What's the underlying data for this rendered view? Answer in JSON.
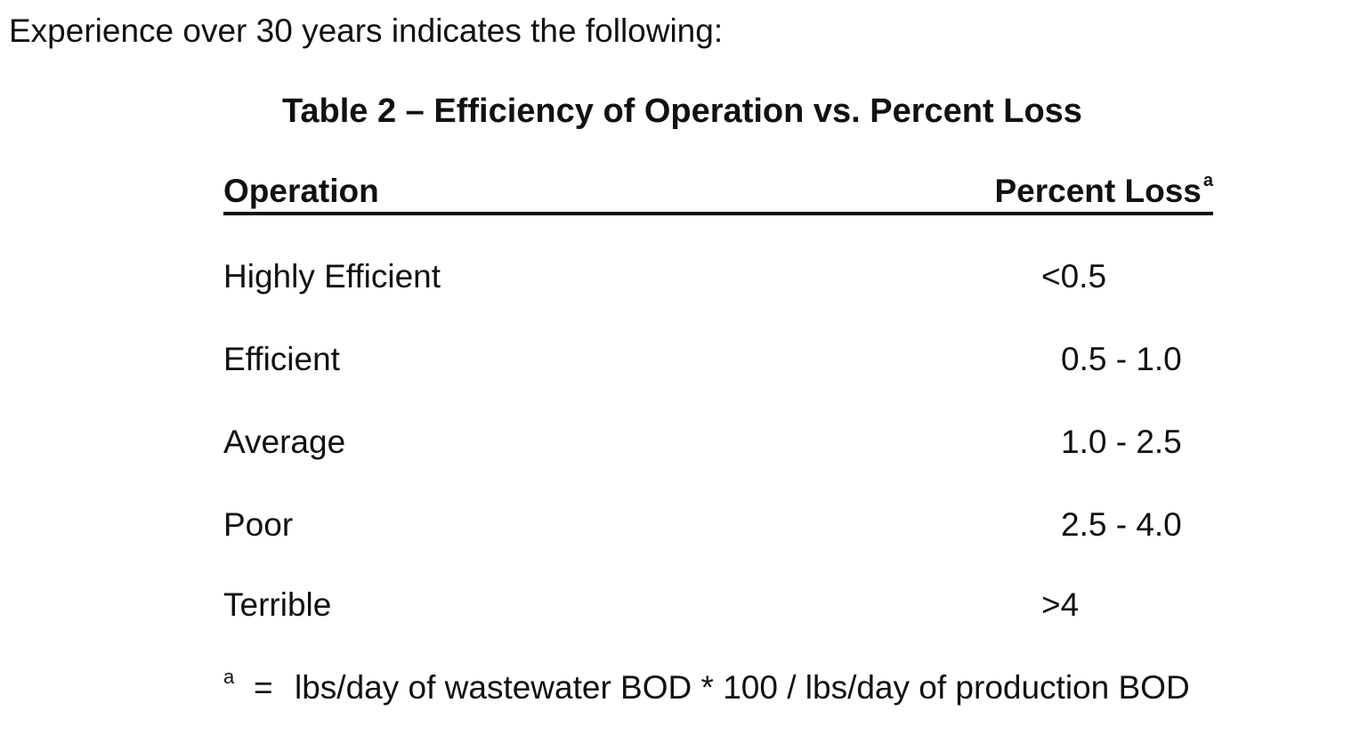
{
  "intro_text": "Experience over 30 years indicates the following:",
  "table": {
    "caption": "Table 2 – Efficiency of Operation vs. Percent Loss",
    "headers": {
      "operation": "Operation",
      "percent_loss": "Percent Loss",
      "percent_loss_marker": "a"
    },
    "rows": [
      {
        "operation": "Highly Efficient",
        "percent_loss": "<0.5"
      },
      {
        "operation": "Efficient",
        "percent_loss": "0.5 - 1.0"
      },
      {
        "operation": "Average",
        "percent_loss": "1.0 - 2.5"
      },
      {
        "operation": "Poor",
        "percent_loss": "2.5 - 4.0"
      },
      {
        "operation": "Terrible",
        "percent_loss": ">4"
      }
    ]
  },
  "footnote": {
    "marker": "a",
    "equals": "=",
    "text": "lbs/day of wastewater BOD * 100 / lbs/day of production BOD"
  }
}
